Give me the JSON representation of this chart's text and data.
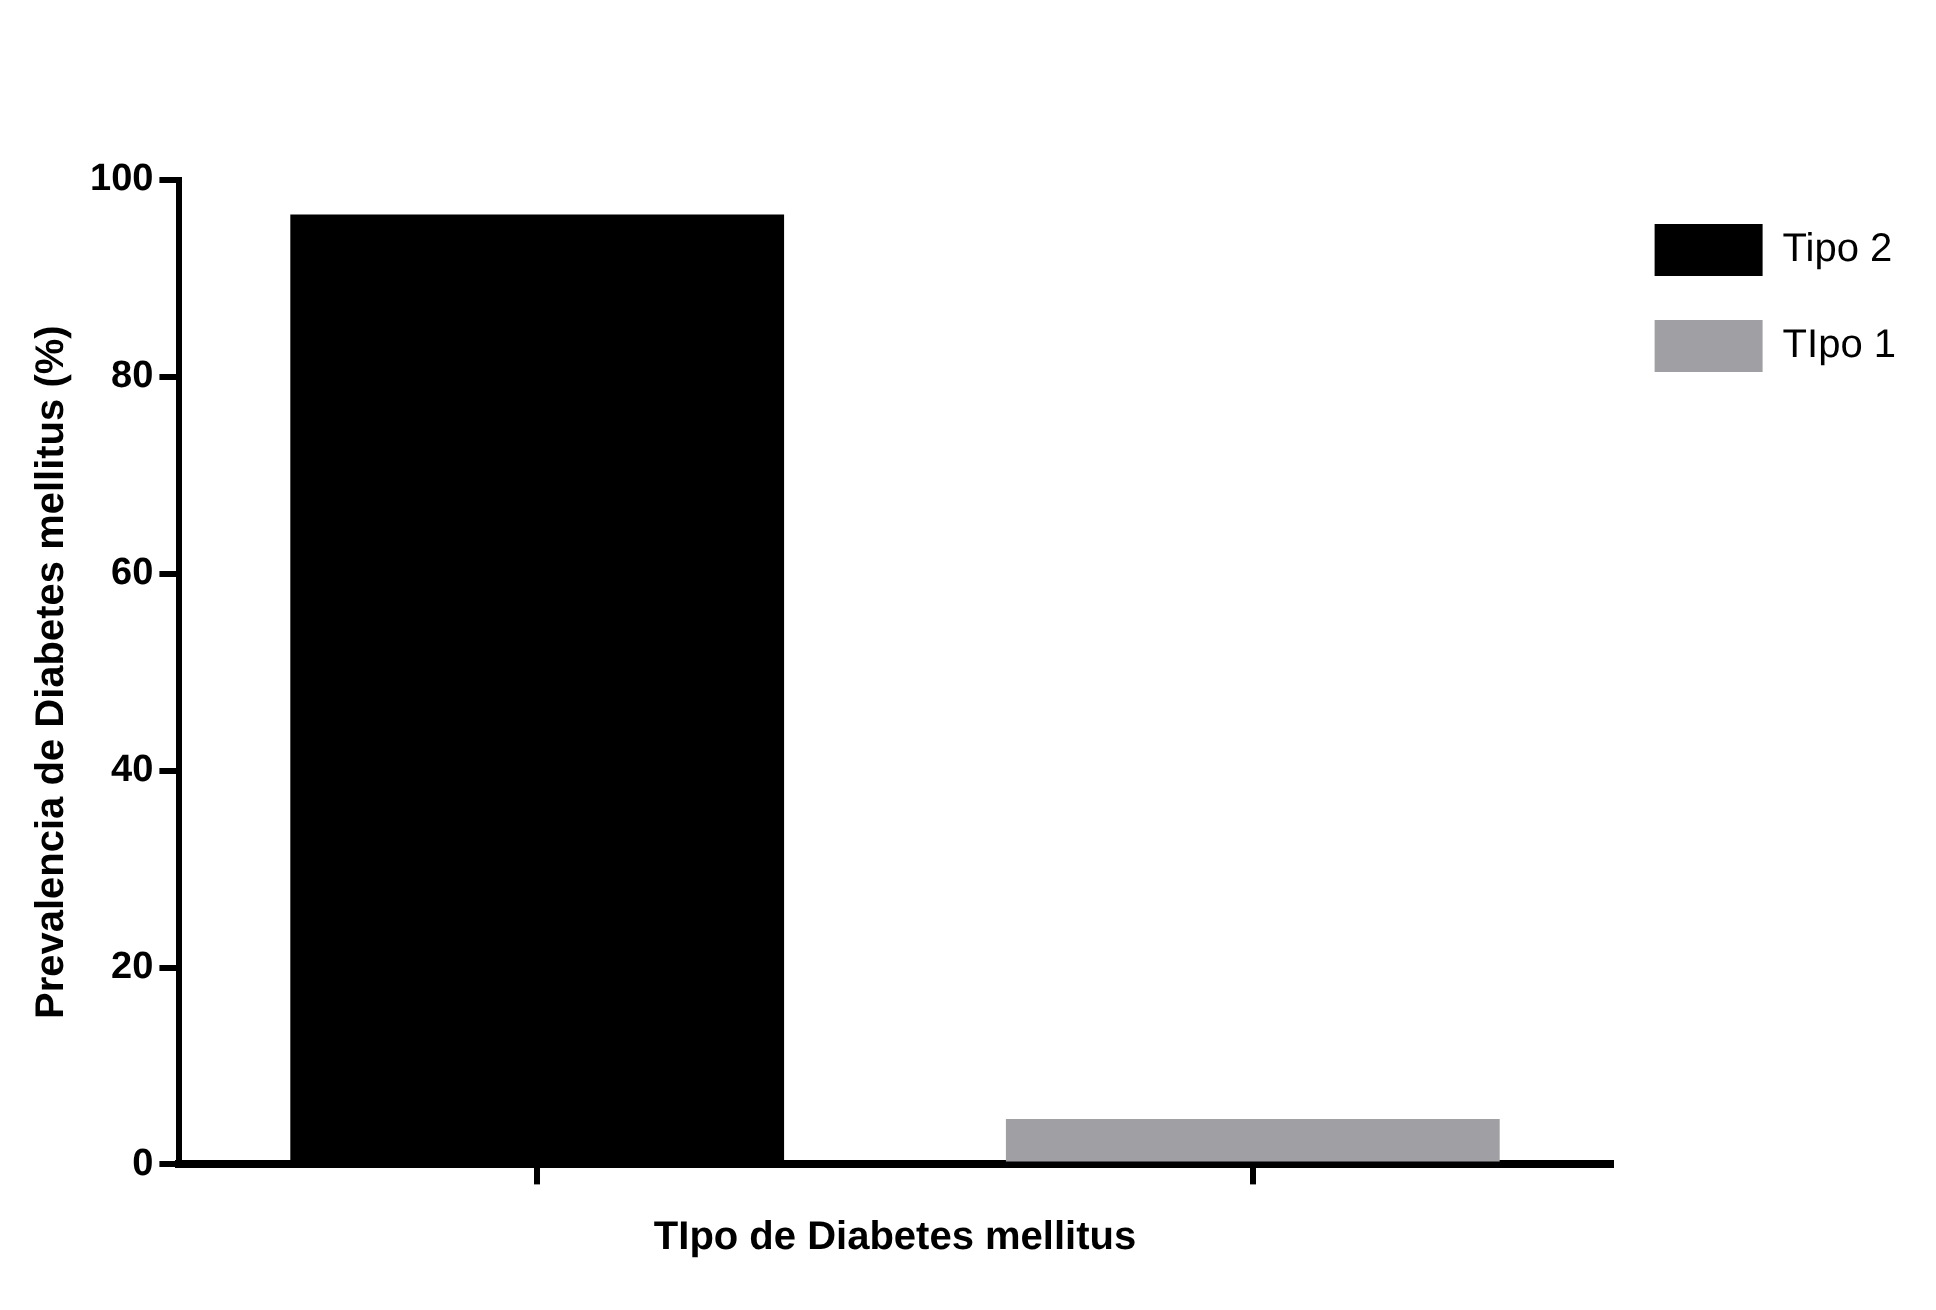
{
  "chart_data": {
    "type": "bar",
    "xlabel": "TIpo de Diabetes mellitus",
    "ylabel": "Prevalencia de Diabetes mellitus (%)",
    "categories": [
      null,
      null
    ],
    "series": [
      {
        "name": "Tipo 2",
        "color": "#000000",
        "values": [
          96.5,
          null
        ]
      },
      {
        "name": "TIpo 1",
        "color": "#a0a0a4",
        "values": [
          null,
          4.6
        ]
      }
    ],
    "ylim": [
      0,
      100
    ],
    "yticks": [
      0,
      20,
      40,
      60,
      80,
      100
    ],
    "grid": false,
    "legend": "top right"
  }
}
